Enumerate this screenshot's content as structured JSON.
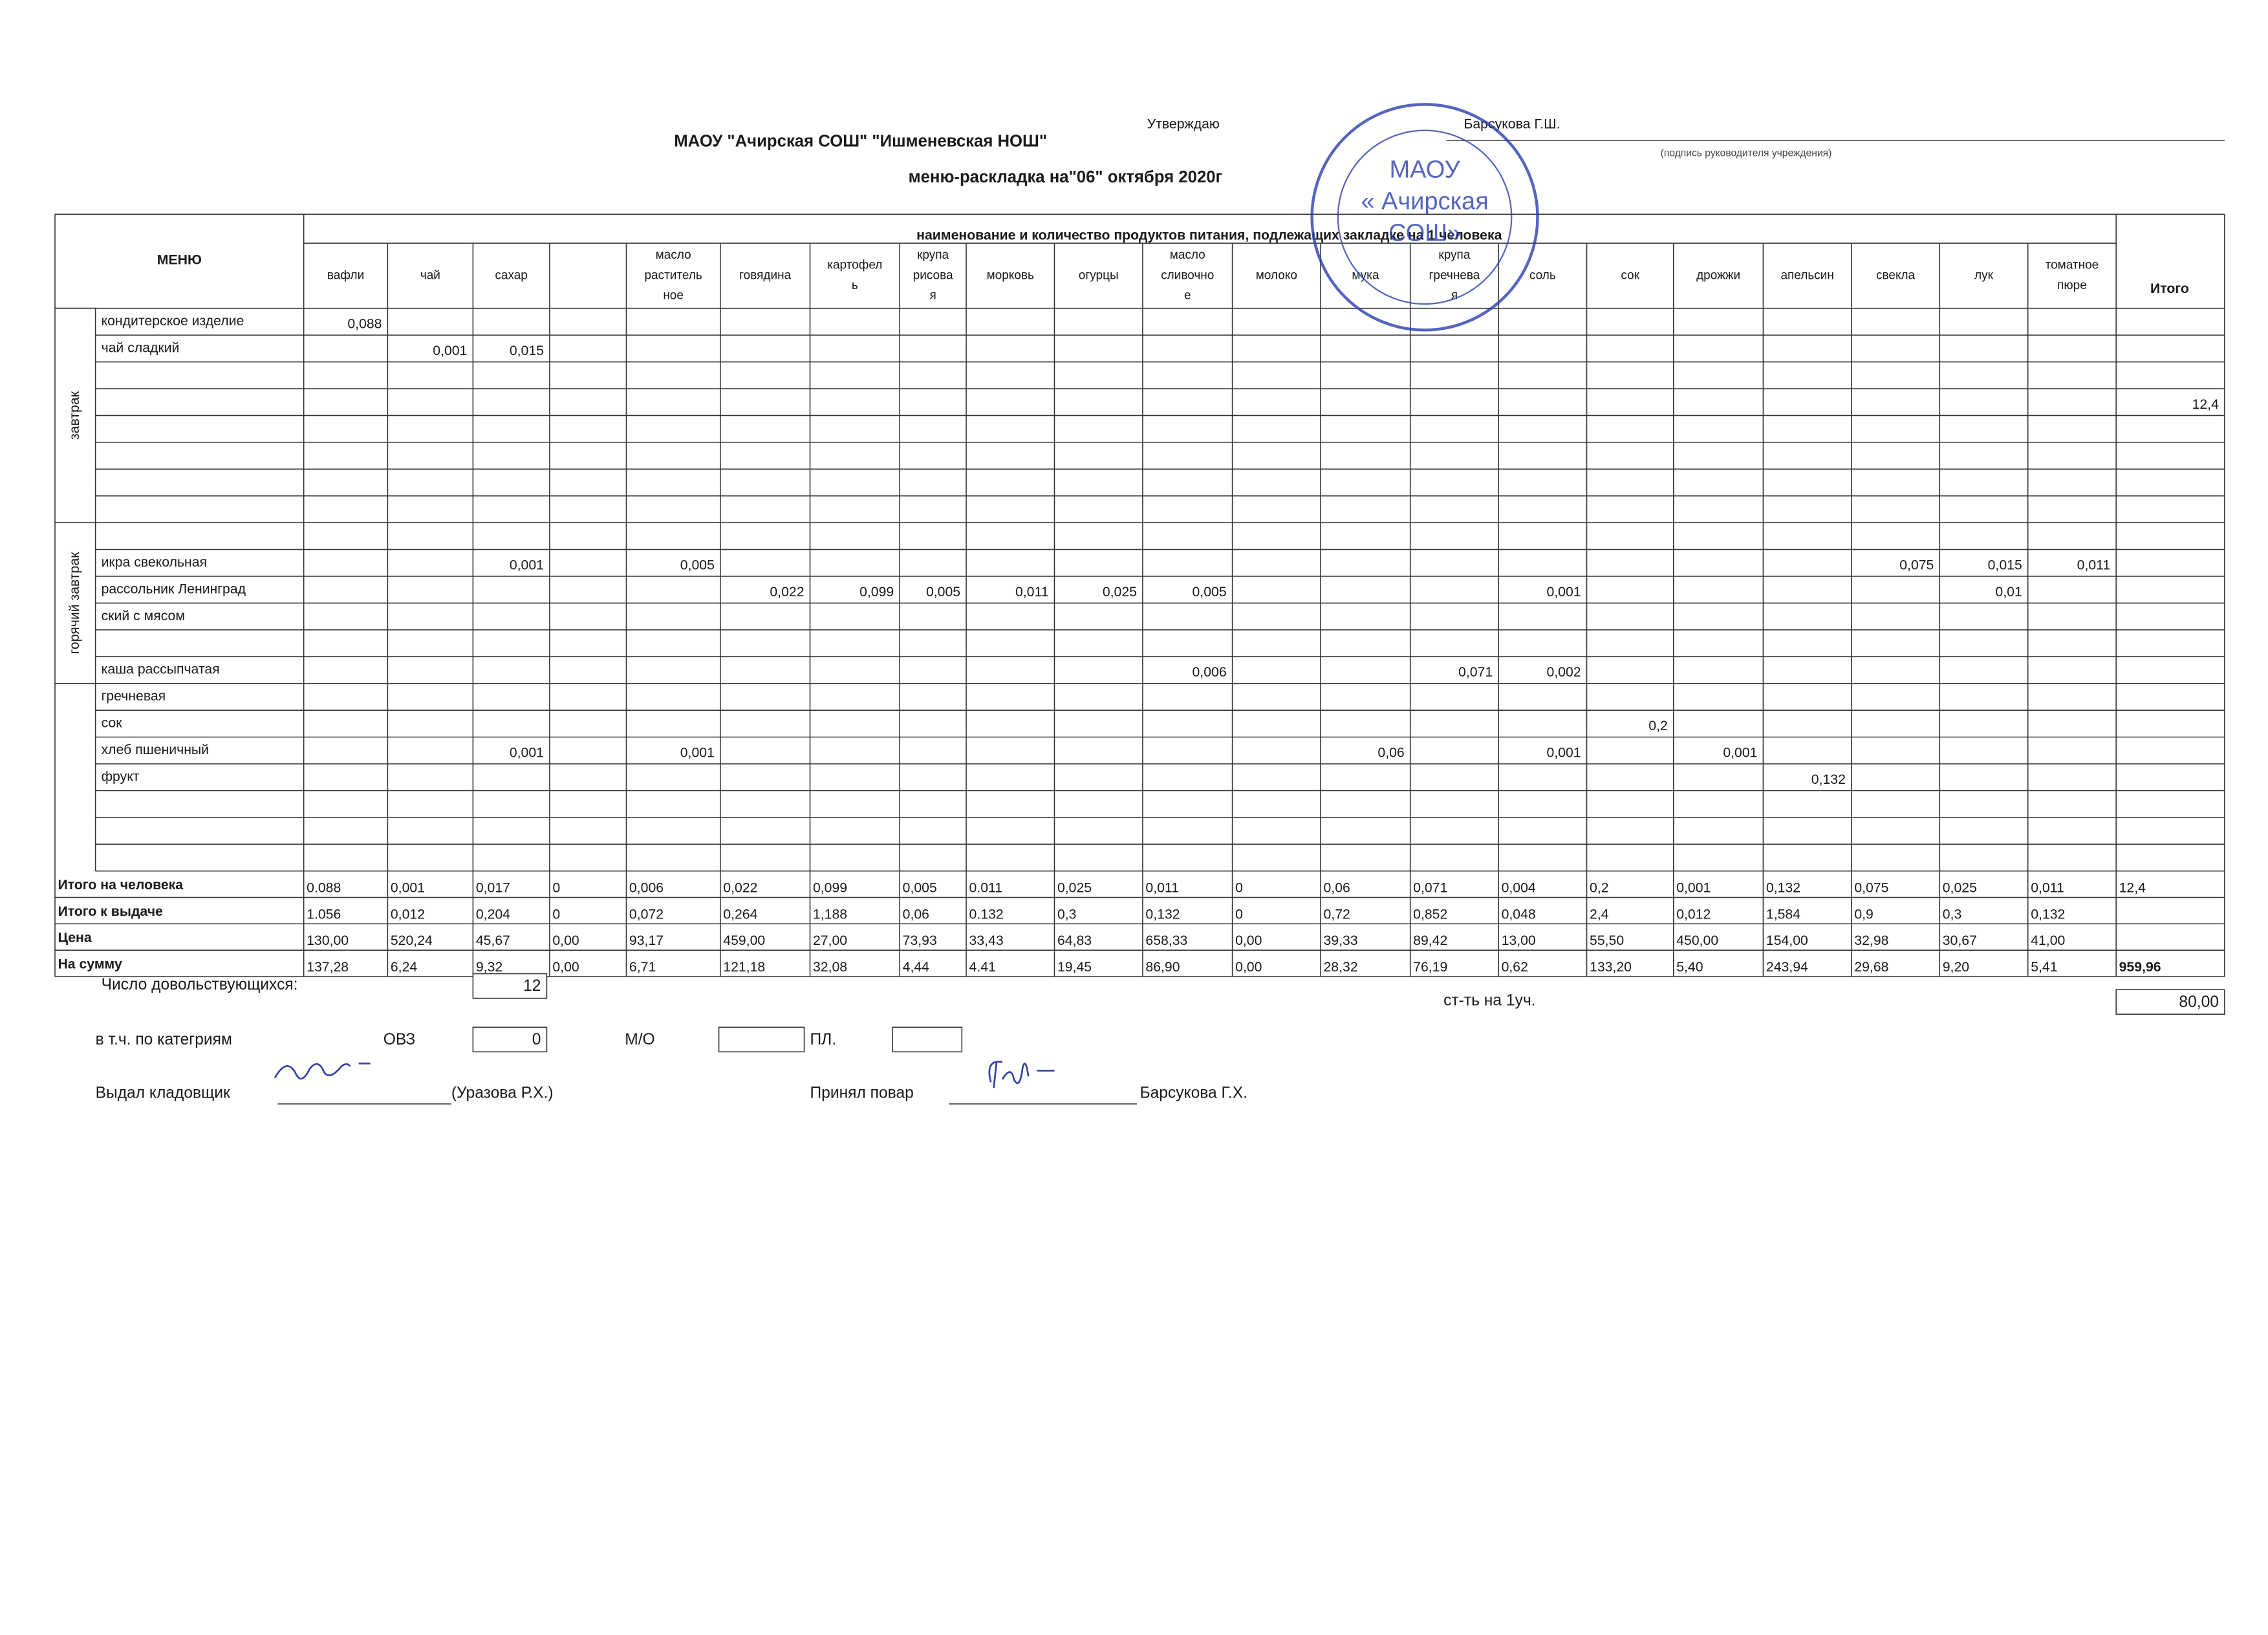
{
  "header": {
    "approve": "Утверждаю",
    "approver": "Барсукова Г.Ш.",
    "signature_caption": "(подпись руководителя учреждения)",
    "organization": "МАОУ \"Ачирская СОШ\" \"Ишменевская НОШ\"",
    "title": "меню-раскладка на\"06\" октября 2020г"
  },
  "stamp": {
    "lines": [
      "МАОУ",
      "« Ачирская",
      "СОШ»"
    ]
  },
  "table": {
    "menu_header": "МЕНЮ",
    "products_header": "наименование и количество продуктов питания, подлежащих закладке на 1 человека",
    "total_header": "Итого",
    "products": [
      [
        "вафли"
      ],
      [
        "чай"
      ],
      [
        "сахар"
      ],
      null,
      [
        "масло",
        "раститель",
        "ное"
      ],
      [
        "говядина"
      ],
      [
        "картофел",
        "ь"
      ],
      [
        "крупа",
        "рисова",
        "я"
      ],
      [
        "морковь"
      ],
      [
        "огурцы"
      ],
      [
        "масло",
        "сливочно",
        "е"
      ],
      [
        "молоко"
      ],
      [
        "мука"
      ],
      [
        "крупа",
        "гречнева",
        "я"
      ],
      [
        "соль"
      ],
      [
        "сок"
      ],
      [
        "дрожжи"
      ],
      [
        "апельсин"
      ],
      [
        "свекла"
      ],
      [
        "лук"
      ],
      [
        "томатное",
        "пюре"
      ]
    ],
    "sections": [
      "завтрак",
      "горячий завтрак"
    ],
    "rows": [
      {
        "name": "кондитерское изделие",
        "values": {
          "0": "0,088"
        }
      },
      {
        "name": "чай сладкий",
        "values": {
          "1": "0,001",
          "2": "0,015"
        }
      },
      null,
      {
        "values": {
          "21": "12,4"
        }
      },
      null,
      null,
      null,
      null,
      null,
      {
        "name": "икра свекольная",
        "values": {
          "2": "0,001",
          "4": "0,005",
          "18": "0,075",
          "19": "0,015",
          "20": "0,011"
        }
      },
      {
        "name": "рассольник Ленинград",
        "values": {
          "5": "0,022",
          "6": "0,099",
          "7": "0,005",
          "8": "0,011",
          "9": "0,025",
          "10": "0,005",
          "14": "0,001",
          "19": "0,01"
        }
      },
      {
        "name": "ский с мясом"
      },
      null,
      {
        "name": "каша рассыпчатая",
        "values": {
          "10": "0,006",
          "13": "0,071",
          "14": "0,002"
        }
      },
      {
        "name": "гречневая"
      },
      {
        "name": "сок",
        "values": {
          "15": "0,2"
        }
      },
      {
        "name": "хлеб пшеничный",
        "values": {
          "2": "0,001",
          "4": "0,001",
          "12": "0,06",
          "14": "0,001",
          "16": "0,001"
        }
      },
      {
        "name": "фрукт",
        "values": {
          "17": "0,132"
        }
      },
      null,
      null,
      null
    ],
    "totals": [
      {
        "label": "Итого на человека",
        "values": [
          "0.088",
          "0,001",
          "0,017",
          "0",
          "0,006",
          "0,022",
          "0,099",
          "0,005",
          "0.011",
          "0,025",
          "0,011",
          "0",
          "0,06",
          "0,071",
          "0,004",
          "0,2",
          "0,001",
          "0,132",
          "0,075",
          "0,025",
          "0,011",
          "12,4"
        ]
      },
      {
        "label": "Итого к выдаче",
        "values": [
          "1.056",
          "0,012",
          "0,204",
          "0",
          "0,072",
          "0,264",
          "1,188",
          "0,06",
          "0.132",
          "0,3",
          "0,132",
          "0",
          "0,72",
          "0,852",
          "0,048",
          "2,4",
          "0,012",
          "1,584",
          "0,9",
          "0,3",
          "0,132",
          null
        ]
      },
      {
        "label": "Цена",
        "values": [
          "130,00",
          "520,24",
          "45,67",
          "0,00",
          "93,17",
          "459,00",
          "27,00",
          "73,93",
          "33,43",
          "64,83",
          "658,33",
          "0,00",
          "39,33",
          "89,42",
          "13,00",
          "55,50",
          "450,00",
          "154,00",
          "32,98",
          "30,67",
          "41,00",
          null
        ]
      },
      {
        "label": "На сумму",
        "values": [
          "137,28",
          "6,24",
          "9,32",
          "0,00",
          "6,71",
          "121,18",
          "32,08",
          "4,44",
          "4.41",
          "19,45",
          "86,90",
          "0,00",
          "28,32",
          "76,19",
          "0,62",
          "133,20",
          "5,40",
          "243,94",
          "29,68",
          "9,20",
          "5,41",
          "959,96"
        ]
      }
    ]
  },
  "footer": {
    "count_label": "Число довольствующихся:",
    "count": "12",
    "cost_label": "ст-ть на 1уч.",
    "cost": "80,00",
    "categories_label": "в т.ч. по категриям",
    "categories": [
      {
        "label": "ОВЗ",
        "value": "0"
      },
      {
        "label": "М/О"
      },
      {
        "label": "ПЛ."
      }
    ],
    "issued_label": "Выдал кладовщик",
    "issued_name": "(Уразова Р.Х.)",
    "received_label": "Принял повар",
    "received_name": "Барсукова Г.Х."
  }
}
